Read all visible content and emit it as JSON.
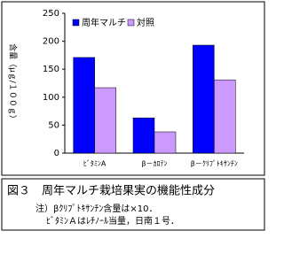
{
  "chart_data": {
    "type": "bar",
    "ylabel": "含量（μｇ/１００ｇ）",
    "categories": [
      "ﾋﾞﾀﾐﾝA",
      "β－ｶﾛﾃﾝ",
      "β－ｸﾘﾌﾟﾄｷｻﾝﾁﾝ"
    ],
    "series": [
      {
        "name": "周年マルチ",
        "color": "#0000ff",
        "values": [
          171,
          63,
          193
        ]
      },
      {
        "name": "対照",
        "color": "#cc99ff",
        "values": [
          117,
          38,
          131
        ]
      }
    ],
    "ylim": [
      0,
      250
    ],
    "yticks": [
      0,
      50,
      100,
      150,
      200,
      250
    ],
    "grid": false
  },
  "caption": {
    "title": "図３　周年マルチ栽培果実の機能性成分",
    "notes": [
      "注）βｸﾘﾌﾟﾄｷｻﾝﾁﾝ含量は×10．",
      "ﾋﾞﾀﾐﾝＡはﾚﾁﾉｰﾙ当量，日南１号．"
    ]
  }
}
